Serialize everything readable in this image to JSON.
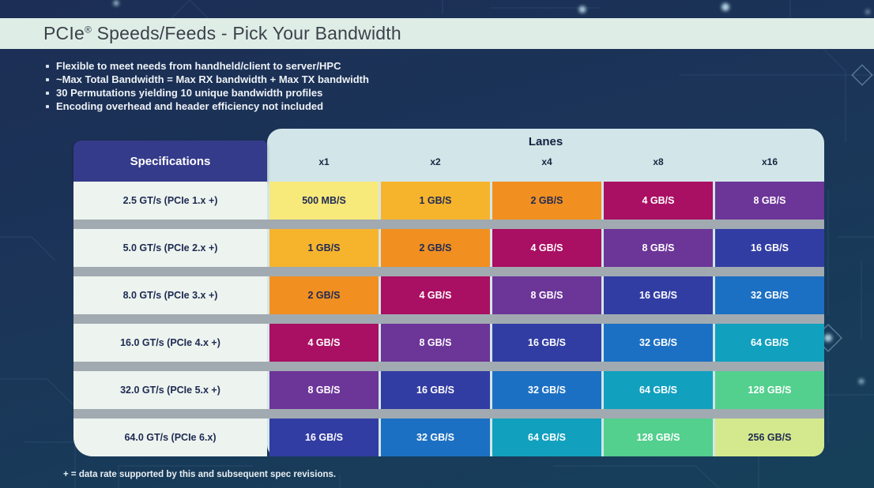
{
  "title": {
    "brand": "PCIe",
    "reg": "®",
    "rest": " Speeds/Feeds - Pick Your Bandwidth"
  },
  "bullets": [
    "Flexible to meet needs from handheld/client to server/HPC",
    "~Max Total Bandwidth = Max RX bandwidth + Max TX bandwidth",
    "30 Permutations yielding 10 unique bandwidth profiles",
    "Encoding overhead and header efficiency not included"
  ],
  "table": {
    "spec_header": "Specifications",
    "lanes_header": "Lanes",
    "lane_columns": [
      "x1",
      "x2",
      "x4",
      "x8",
      "x16"
    ],
    "rows": [
      {
        "spec": "2.5 GT/s (PCIe 1.x +)",
        "cells": [
          {
            "value": "500 MB/S",
            "color": "yellow"
          },
          {
            "value": "1 GB/S",
            "color": "amber"
          },
          {
            "value": "2 GB/S",
            "color": "orange"
          },
          {
            "value": "4 GB/S",
            "color": "magenta"
          },
          {
            "value": "8 GB/S",
            "color": "purple"
          }
        ]
      },
      {
        "spec": "5.0 GT/s (PCIe 2.x +)",
        "cells": [
          {
            "value": "1 GB/S",
            "color": "amber"
          },
          {
            "value": "2 GB/S",
            "color": "orange"
          },
          {
            "value": "4 GB/S",
            "color": "magenta"
          },
          {
            "value": "8 GB/S",
            "color": "purple"
          },
          {
            "value": "16 GB/S",
            "color": "indigo"
          }
        ]
      },
      {
        "spec": "8.0 GT/s (PCIe 3.x +)",
        "cells": [
          {
            "value": "2 GB/S",
            "color": "orange"
          },
          {
            "value": "4 GB/S",
            "color": "magenta"
          },
          {
            "value": "8 GB/S",
            "color": "purple"
          },
          {
            "value": "16 GB/S",
            "color": "indigo"
          },
          {
            "value": "32 GB/S",
            "color": "blue"
          }
        ]
      },
      {
        "spec": "16.0 GT/s (PCIe 4.x +)",
        "cells": [
          {
            "value": "4 GB/S",
            "color": "magenta"
          },
          {
            "value": "8 GB/S",
            "color": "purple"
          },
          {
            "value": "16 GB/S",
            "color": "indigo"
          },
          {
            "value": "32 GB/S",
            "color": "blue"
          },
          {
            "value": "64 GB/S",
            "color": "teal"
          }
        ]
      },
      {
        "spec": "32.0 GT/s (PCIe 5.x +)",
        "cells": [
          {
            "value": "8 GB/S",
            "color": "purple"
          },
          {
            "value": "16 GB/S",
            "color": "indigo"
          },
          {
            "value": "32 GB/S",
            "color": "blue"
          },
          {
            "value": "64 GB/S",
            "color": "teal"
          },
          {
            "value": "128 GB/S",
            "color": "mint"
          }
        ]
      },
      {
        "spec": "64.0 GT/s (PCIe 6.x)",
        "cells": [
          {
            "value": "16 GB/S",
            "color": "indigo"
          },
          {
            "value": "32 GB/S",
            "color": "blue"
          },
          {
            "value": "64 GB/S",
            "color": "teal"
          },
          {
            "value": "128 GB/S",
            "color": "mint"
          },
          {
            "value": "256 GB/S",
            "color": "lime"
          }
        ]
      }
    ]
  },
  "footnote": "+ = data rate supported by this and subsequent spec revisions.",
  "colors": {
    "palette": {
      "yellow": {
        "bg": "#f8e97b",
        "text": "#1f2a55"
      },
      "amber": {
        "bg": "#f6b42d",
        "text": "#1f2a55"
      },
      "orange": {
        "bg": "#f18f20",
        "text": "#1f2a55"
      },
      "magenta": {
        "bg": "#a90f62",
        "text": "#ffffff"
      },
      "purple": {
        "bg": "#6c3598",
        "text": "#ffffff"
      },
      "indigo": {
        "bg": "#323da3",
        "text": "#ffffff"
      },
      "blue": {
        "bg": "#1c70c3",
        "text": "#ffffff"
      },
      "teal": {
        "bg": "#11a0be",
        "text": "#ffffff"
      },
      "mint": {
        "bg": "#53cf8e",
        "text": "#ffffff"
      },
      "lime": {
        "bg": "#d4e98d",
        "text": "#1f2a55"
      }
    },
    "title_bar_bg": "#dfede7",
    "spec_header_bg": "#353b8b",
    "lanes_panel_bg": "#d2e6e9",
    "spec_cell_bg": "#edf3ee",
    "row_divider": "#a1aab1",
    "background_navy": "#1c2e55"
  }
}
